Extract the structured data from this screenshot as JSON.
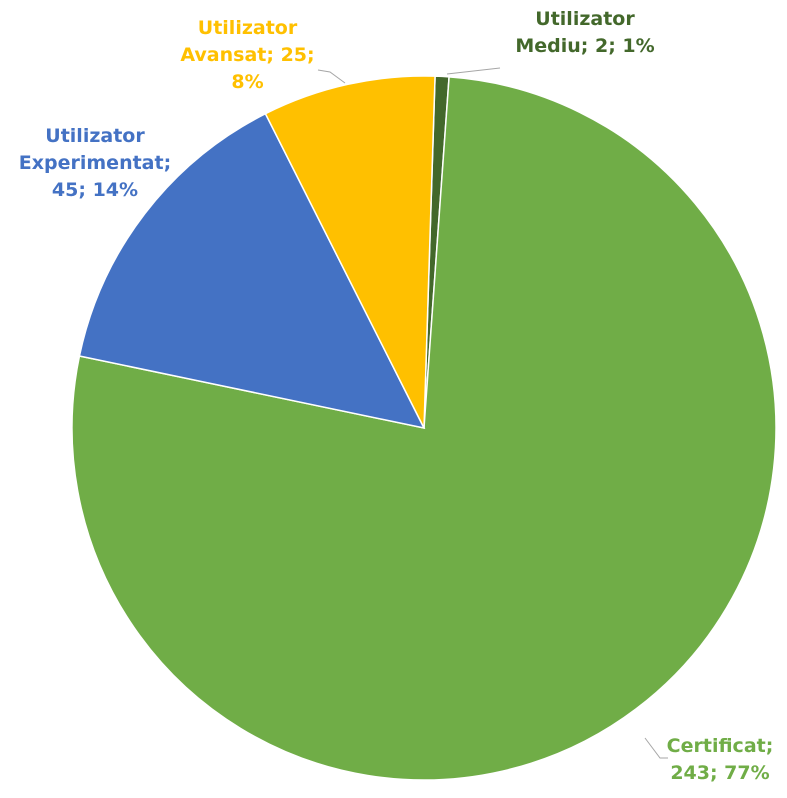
{
  "chart_data": {
    "type": "pie",
    "categories": [
      "Utilizator Mediu",
      "Certificat",
      "Utilizator Experimentat",
      "Utilizator Avansat"
    ],
    "values": [
      2,
      243,
      45,
      25
    ],
    "label_separator": "; ",
    "value_labels": [
      "2; 1%",
      "243; 77%",
      "45; 14%",
      "25; 8%"
    ],
    "colors": [
      "#43682b",
      "#70ad47",
      "#4472c4",
      "#ffc000"
    ],
    "label_colors": [
      "#43682b",
      "#70ad47",
      "#4472c4",
      "#ffc000"
    ]
  }
}
